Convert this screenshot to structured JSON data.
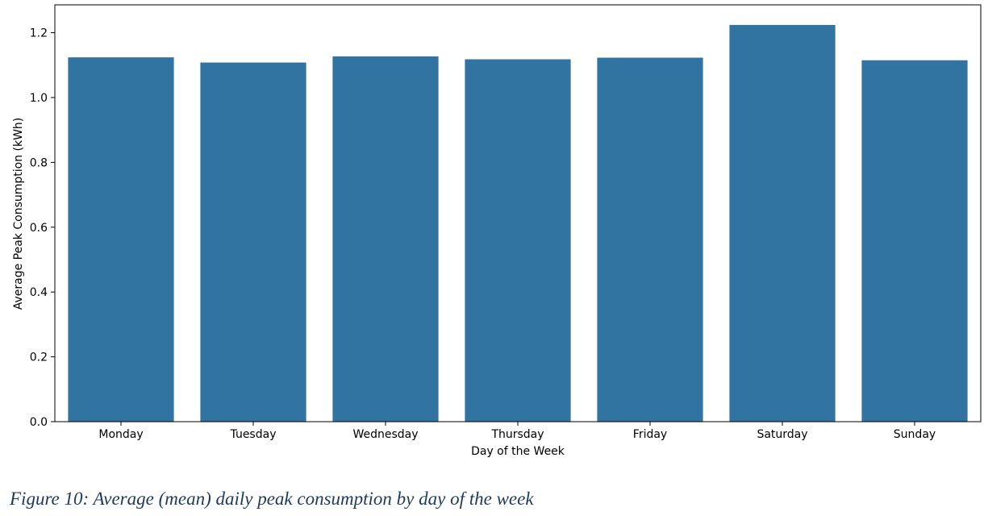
{
  "caption": "Figure 10: Average (mean) daily peak consumption by day of the week",
  "colors": {
    "bar": "#3274a1",
    "axis": "#000000"
  },
  "chart_data": {
    "type": "bar",
    "categories": [
      "Monday",
      "Tuesday",
      "Wednesday",
      "Thursday",
      "Friday",
      "Saturday",
      "Sunday"
    ],
    "values": [
      1.124,
      1.108,
      1.127,
      1.118,
      1.123,
      1.224,
      1.115
    ],
    "xlabel": "Day of the Week",
    "ylabel": "Average Peak Consumption (kWh)",
    "ylim": [
      0,
      1.286
    ],
    "yticks": [
      0.0,
      0.2,
      0.4,
      0.6,
      0.8,
      1.0,
      1.2
    ],
    "ytick_labels": [
      "0.0",
      "0.2",
      "0.4",
      "0.6",
      "0.8",
      "1.0",
      "1.2"
    ],
    "grid": false,
    "legend": "none"
  }
}
